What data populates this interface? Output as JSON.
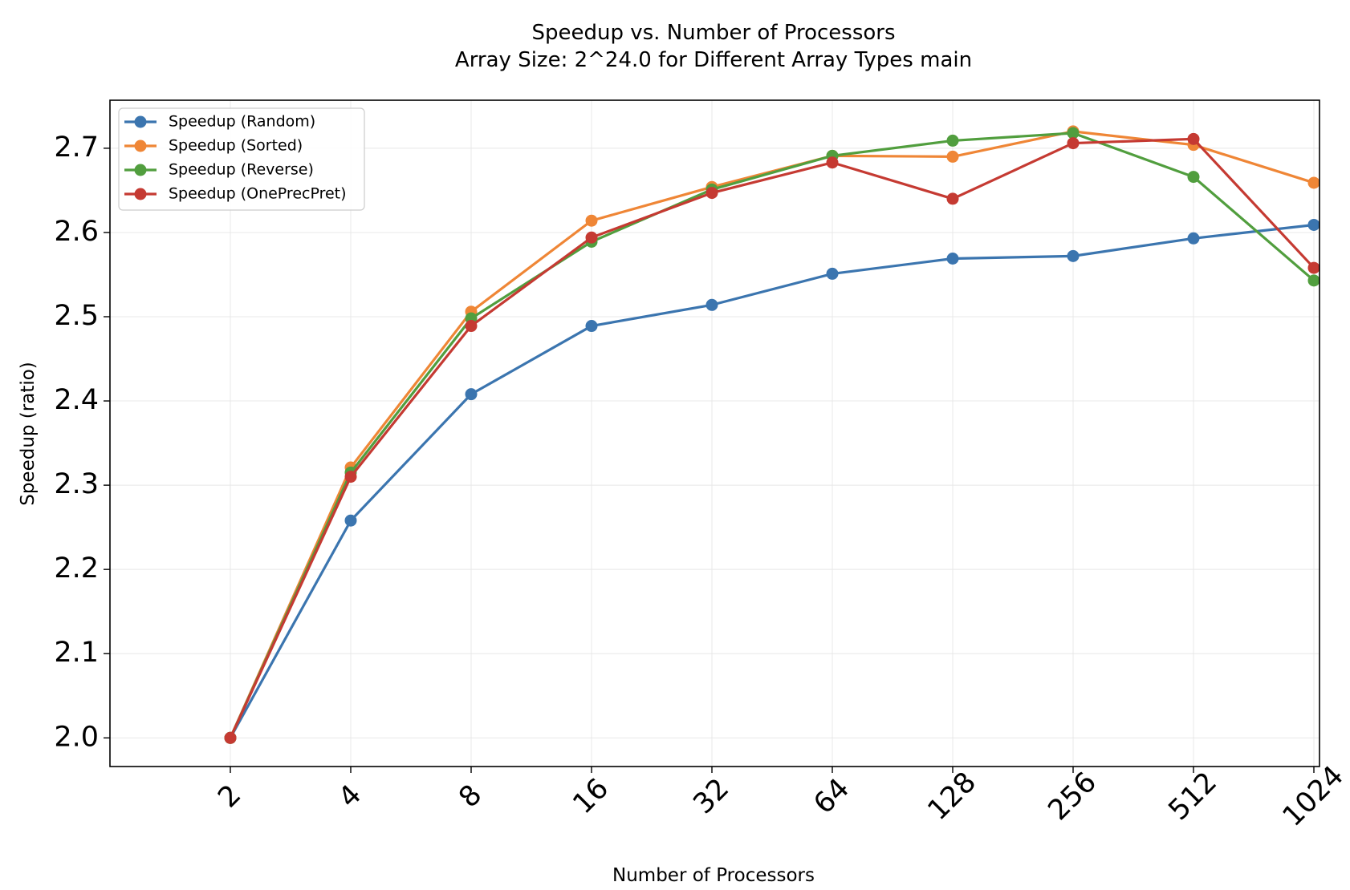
{
  "chart_data": {
    "type": "line",
    "title": "Speedup vs. Number of Processors",
    "subtitle": "Array Size: 2^24.0 for Different Array Types main",
    "xlabel": "Number of Processors",
    "ylabel": "Speedup (ratio)",
    "x": [
      2,
      4,
      8,
      16,
      32,
      64,
      128,
      256,
      512,
      1024
    ],
    "x_scale": "log2",
    "x_tick_labels": [
      "2",
      "4",
      "8",
      "16",
      "32",
      "64",
      "128",
      "256",
      "512",
      "1024"
    ],
    "ylim": [
      1.966,
      2.757
    ],
    "y_ticks": [
      2.0,
      2.1,
      2.2,
      2.3,
      2.4,
      2.5,
      2.6,
      2.7
    ],
    "y_tick_labels": [
      "2.0",
      "2.1",
      "2.2",
      "2.3",
      "2.4",
      "2.5",
      "2.6",
      "2.7"
    ],
    "grid": true,
    "legend_position": "top-left",
    "series": [
      {
        "name": "Speedup (Random)",
        "color": "#3b75af",
        "values": [
          2.0,
          2.258,
          2.408,
          2.489,
          2.514,
          2.551,
          2.569,
          2.572,
          2.593,
          2.609
        ]
      },
      {
        "name": "Speedup (Sorted)",
        "color": "#ef8636",
        "values": [
          2.0,
          2.321,
          2.506,
          2.614,
          2.654,
          2.691,
          2.69,
          2.72,
          2.704,
          2.659
        ]
      },
      {
        "name": "Speedup (Reverse)",
        "color": "#519e3e",
        "values": [
          2.0,
          2.315,
          2.498,
          2.589,
          2.651,
          2.691,
          2.709,
          2.718,
          2.666,
          2.543
        ]
      },
      {
        "name": "Speedup (OnePrecPret)",
        "color": "#c53a32",
        "values": [
          2.0,
          2.31,
          2.489,
          2.594,
          2.647,
          2.683,
          2.64,
          2.706,
          2.711,
          2.558
        ]
      }
    ]
  }
}
